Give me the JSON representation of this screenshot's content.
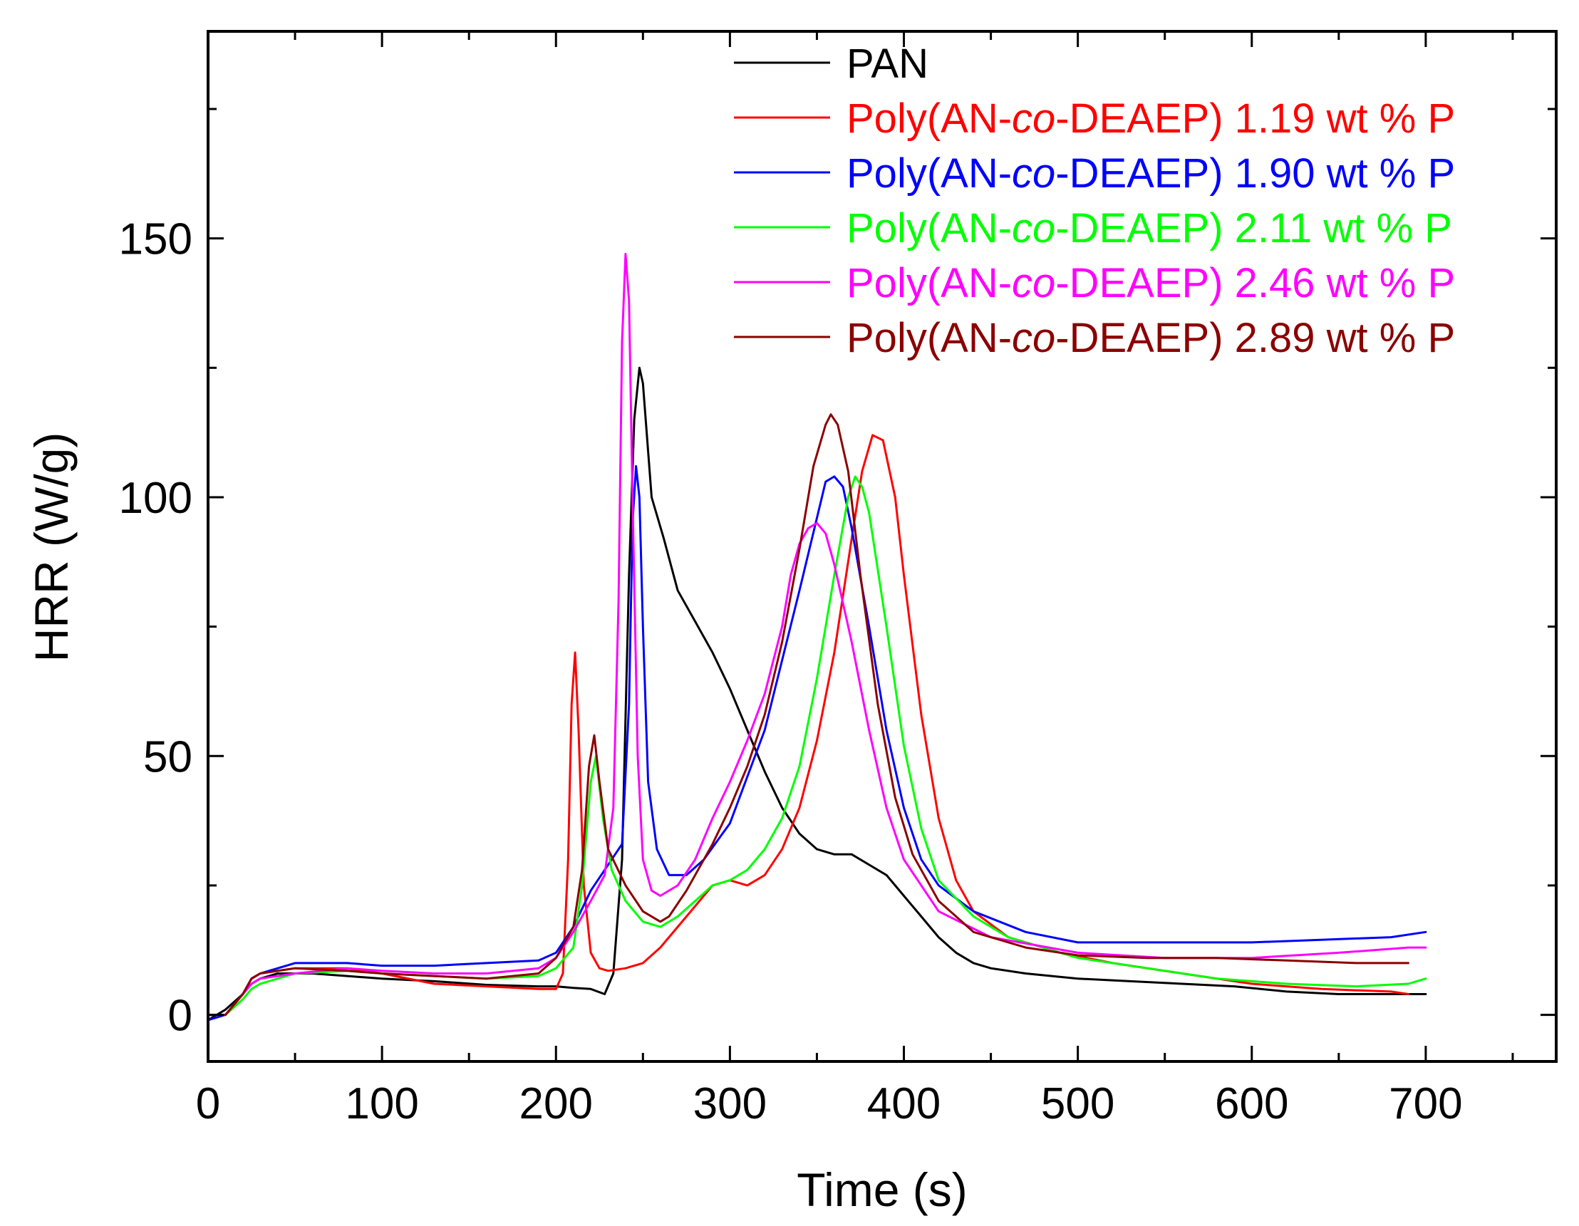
{
  "chart_data": {
    "type": "line",
    "title": "",
    "xlabel": "Time (s)",
    "ylabel": "HRR (W/g)",
    "xlim": [
      0,
      775
    ],
    "ylim": [
      -9,
      190
    ],
    "xticks": [
      0,
      100,
      200,
      300,
      400,
      500,
      600,
      700
    ],
    "yticks": [
      0,
      50,
      100,
      150
    ],
    "x_tick_labels": [
      "0",
      "100",
      "200",
      "300",
      "400",
      "500",
      "600",
      "700"
    ],
    "y_tick_labels": [
      "0",
      "50",
      "100",
      "150"
    ],
    "grid": false,
    "legend_position": "top-right",
    "series": [
      {
        "name": "PAN",
        "legend": {
          "prefix": "PAN",
          "italic": "",
          "suffix": ""
        },
        "color": "#000000",
        "x": [
          0,
          10,
          20,
          25,
          30,
          40,
          60,
          80,
          100,
          130,
          160,
          190,
          200,
          210,
          220,
          228,
          233,
          238,
          242,
          245,
          248,
          250,
          255,
          262,
          270,
          280,
          290,
          300,
          310,
          320,
          330,
          340,
          350,
          360,
          370,
          380,
          390,
          400,
          410,
          420,
          430,
          440,
          450,
          470,
          500,
          530,
          560,
          590,
          620,
          650,
          680,
          700
        ],
        "y": [
          -1,
          1,
          4,
          6,
          7,
          8,
          8,
          7.5,
          7,
          6.5,
          5.8,
          5.5,
          5.5,
          5.2,
          5,
          4,
          8,
          30,
          85,
          115,
          125,
          122,
          100,
          92,
          82,
          76,
          70,
          63,
          55,
          47,
          40,
          35,
          32,
          31,
          31,
          29,
          27,
          23,
          19,
          15,
          12,
          10,
          9,
          8,
          7,
          6.5,
          6,
          5.5,
          4.5,
          4,
          4,
          4
        ]
      },
      {
        "name": "Poly(AN-co-DEAEP) 1.19 wt % P",
        "legend": {
          "prefix": "Poly(AN-",
          "italic": "co",
          "suffix": "-DEAEP) 1.19 wt % P"
        },
        "color": "#ff0000",
        "x": [
          0,
          10,
          20,
          25,
          30,
          50,
          80,
          100,
          130,
          160,
          190,
          200,
          204,
          207,
          209,
          211,
          213,
          216,
          220,
          225,
          230,
          240,
          250,
          260,
          270,
          280,
          290,
          300,
          310,
          320,
          330,
          340,
          350,
          360,
          370,
          376,
          382,
          388,
          395,
          400,
          410,
          420,
          430,
          440,
          460,
          490,
          520,
          560,
          600,
          640,
          680,
          690
        ],
        "y": [
          0,
          0,
          4,
          7,
          8,
          9,
          9,
          8,
          6,
          5.5,
          5,
          5,
          8,
          30,
          60,
          70,
          55,
          25,
          12,
          9,
          8.5,
          9,
          10,
          13,
          17,
          21,
          25,
          26,
          25,
          27,
          32,
          40,
          53,
          70,
          92,
          105,
          112,
          111,
          100,
          85,
          58,
          38,
          26,
          20,
          15,
          12,
          10,
          8,
          6,
          5,
          4.5,
          4
        ]
      },
      {
        "name": "Poly(AN-co-DEAEP) 1.90 wt % P",
        "legend": {
          "prefix": "Poly(AN-",
          "italic": "co",
          "suffix": "-DEAEP) 1.90 wt % P"
        },
        "color": "#0000ff",
        "x": [
          0,
          10,
          20,
          25,
          30,
          50,
          80,
          100,
          130,
          160,
          190,
          200,
          210,
          220,
          230,
          238,
          242,
          244,
          246,
          248,
          250,
          253,
          258,
          265,
          275,
          285,
          300,
          320,
          340,
          350,
          355,
          360,
          365,
          370,
          380,
          390,
          400,
          410,
          420,
          440,
          470,
          500,
          530,
          560,
          600,
          640,
          680,
          700
        ],
        "y": [
          -1,
          0,
          4,
          7,
          8,
          10,
          10,
          9.5,
          9.5,
          10,
          10.5,
          12,
          17,
          24,
          29,
          33,
          60,
          95,
          106,
          100,
          75,
          45,
          32,
          27,
          27,
          30,
          37,
          55,
          82,
          96,
          103,
          104,
          102,
          94,
          75,
          55,
          40,
          30,
          25,
          20,
          16,
          14,
          14,
          14,
          14,
          14.5,
          15,
          16
        ]
      },
      {
        "name": "Poly(AN-co-DEAEP) 2.11 wt % P",
        "legend": {
          "prefix": "Poly(AN-",
          "italic": "co",
          "suffix": "-DEAEP) 2.11 wt % P"
        },
        "color": "#00ff00",
        "x": [
          0,
          10,
          20,
          25,
          30,
          50,
          80,
          100,
          130,
          160,
          190,
          200,
          210,
          215,
          220,
          223,
          227,
          232,
          240,
          250,
          260,
          270,
          280,
          290,
          300,
          310,
          320,
          330,
          340,
          350,
          360,
          368,
          372,
          376,
          380,
          390,
          400,
          410,
          420,
          440,
          460,
          500,
          540,
          580,
          620,
          660,
          690,
          700
        ],
        "y": [
          0,
          0,
          3,
          5,
          6,
          8,
          8.5,
          8,
          7.5,
          7,
          7.5,
          9,
          13,
          25,
          45,
          50,
          38,
          28,
          22,
          18,
          17,
          19,
          22,
          25,
          26,
          28,
          32,
          38,
          48,
          65,
          85,
          100,
          104,
          102,
          97,
          75,
          52,
          36,
          26,
          19,
          15,
          11,
          9,
          7,
          6,
          5.5,
          6,
          7
        ]
      },
      {
        "name": "Poly(AN-co-DEAEP) 2.46 wt % P",
        "legend": {
          "prefix": "Poly(AN-",
          "italic": "co",
          "suffix": "-DEAEP) 2.46 wt % P"
        },
        "color": "#ff00ff",
        "x": [
          0,
          10,
          20,
          25,
          30,
          50,
          80,
          100,
          130,
          160,
          190,
          200,
          210,
          220,
          228,
          233,
          236,
          238,
          240,
          242,
          244,
          247,
          250,
          255,
          260,
          270,
          280,
          290,
          300,
          310,
          320,
          330,
          335,
          340,
          345,
          350,
          355,
          360,
          370,
          380,
          390,
          400,
          420,
          450,
          500,
          550,
          600,
          650,
          690,
          700
        ],
        "y": [
          0,
          0,
          4,
          6,
          7,
          8,
          9,
          8.5,
          8,
          8,
          9,
          11,
          16,
          22,
          27,
          40,
          80,
          130,
          147,
          138,
          100,
          50,
          30,
          24,
          23,
          25,
          30,
          38,
          45,
          53,
          62,
          75,
          85,
          91,
          94,
          95,
          93,
          87,
          72,
          55,
          40,
          30,
          20,
          15,
          12,
          11,
          11,
          12,
          13,
          13
        ]
      },
      {
        "name": "Poly(AN-co-DEAEP) 2.89 wt % P",
        "legend": {
          "prefix": "Poly(AN-",
          "italic": "co",
          "suffix": "-DEAEP) 2.89 wt % P"
        },
        "color": "#8b0000",
        "x": [
          0,
          10,
          20,
          25,
          30,
          50,
          80,
          100,
          130,
          160,
          190,
          200,
          210,
          215,
          219,
          222,
          225,
          230,
          240,
          250,
          260,
          265,
          275,
          290,
          300,
          310,
          320,
          330,
          340,
          348,
          355,
          358,
          362,
          368,
          375,
          385,
          395,
          405,
          420,
          440,
          470,
          500,
          540,
          580,
          620,
          660,
          690
        ],
        "y": [
          0,
          0,
          4,
          7,
          8,
          9,
          8.5,
          8,
          7.5,
          7,
          8,
          11,
          17,
          28,
          48,
          54,
          45,
          32,
          25,
          20,
          18,
          19,
          24,
          33,
          40,
          48,
          58,
          72,
          90,
          106,
          114,
          116,
          114,
          105,
          85,
          60,
          42,
          31,
          22,
          16,
          13,
          11.5,
          11,
          11,
          10.5,
          10,
          10
        ]
      }
    ]
  }
}
